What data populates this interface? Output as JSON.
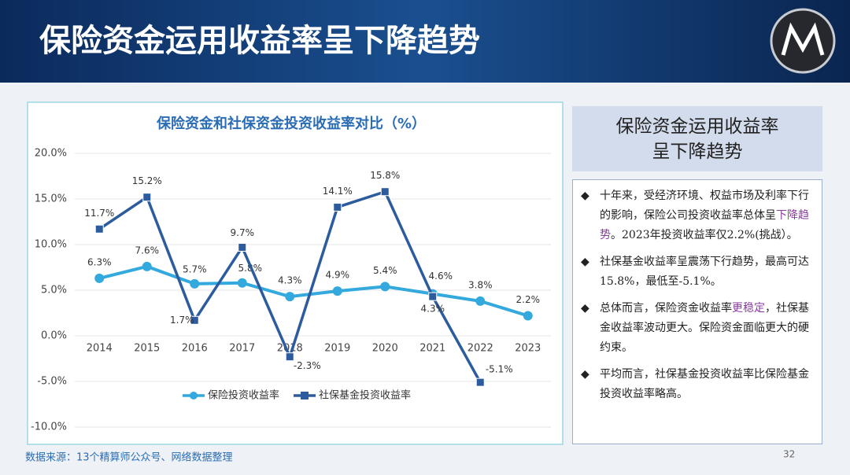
{
  "slide_title": "保险资金运用收益率呈下降趋势",
  "chart_data": {
    "type": "line",
    "title": "保险资金和社保资金投资收益率对比（%）",
    "categories": [
      "2014",
      "2015",
      "2016",
      "2017",
      "2018",
      "2019",
      "2020",
      "2021",
      "2022",
      "2023"
    ],
    "series": [
      {
        "name": "保险投资收益率",
        "color": "#33a9dd",
        "marker": "circle",
        "values": [
          6.3,
          7.6,
          5.7,
          5.8,
          4.3,
          4.9,
          5.4,
          4.6,
          3.8,
          2.2
        ],
        "value_labels": [
          "6.3%",
          "7.6%",
          "5.7%",
          "5.8%",
          "4.3%",
          "4.9%",
          "5.4%",
          "4.6%",
          "3.8%",
          "2.2%"
        ]
      },
      {
        "name": "社保基金投资收益率",
        "color": "#2c5c9e",
        "marker": "square",
        "values": [
          11.7,
          15.2,
          1.7,
          9.7,
          -2.3,
          14.1,
          15.8,
          4.3,
          -5.1,
          null
        ],
        "value_labels": [
          "11.7%",
          "15.2%",
          "1.7%",
          "9.7%",
          "-2.3%",
          "14.1%",
          "15.8%",
          "4.3%",
          "-5.1%",
          null
        ]
      }
    ],
    "ylim": [
      -10,
      20
    ],
    "yticks": [
      {
        "value": -10,
        "label": "-10.0%"
      },
      {
        "value": -5,
        "label": "-5.0%"
      },
      {
        "value": 0,
        "label": "0.0%"
      },
      {
        "value": 5,
        "label": "5.0%"
      },
      {
        "value": 10,
        "label": "10.0%"
      },
      {
        "value": 15,
        "label": "15.0%"
      },
      {
        "value": 20,
        "label": "20.0%"
      }
    ],
    "legend": "bottom"
  },
  "side_panel": {
    "heading": [
      "保险资金运用收益率",
      "呈下降趋势"
    ],
    "bullets": [
      [
        {
          "text": "十年来，受经济环境、权益市场及利率下行的影响，保险公司投资收益率总体呈"
        },
        {
          "text": "下降趋势",
          "highlight": true
        },
        {
          "text": "。2023年投资收益率仅2.2%(挑战）。"
        }
      ],
      [
        {
          "text": "社保基金收益率呈震荡下行趋势，最高可达15.8%，最低至-5.1%。"
        }
      ],
      [
        {
          "text": "总体而言，保险资金收益率"
        },
        {
          "text": "更稳定",
          "highlight": true
        },
        {
          "text": "，社保基金收益率波动更大。保险资金面临更大的硬约束。"
        }
      ],
      [
        {
          "text": "平均而言，社保基金投资收益率比保险基金投资收益率略高。"
        }
      ]
    ]
  },
  "source": "数据来源：13个精算师公众号、网络数据整理",
  "page_number": "32"
}
